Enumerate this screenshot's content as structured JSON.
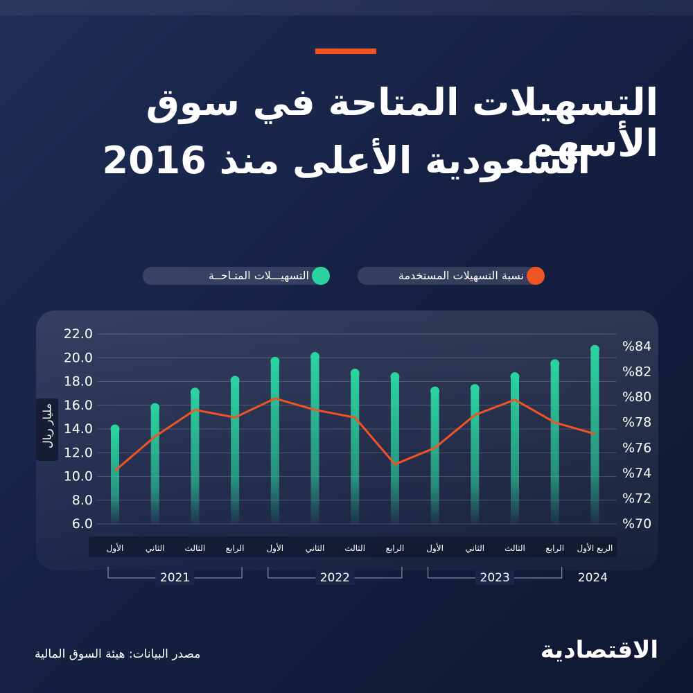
{
  "title": {
    "line1": "التسهيلات المتاحة في سوق الأسهم",
    "line2": "السعودية الأعلى منذ 2016"
  },
  "legend": {
    "available": "التسهيـــلات المتـاحــة",
    "used_ratio": "نسبة التسهيلات المستخدمة"
  },
  "colors": {
    "bar": "#2ad3a0",
    "line": "#f05423",
    "accent": "#f05423",
    "background": "#16213f"
  },
  "source": "مصدر البيانات: هيئة السوق المالية",
  "logo_text": "الاقتصادية",
  "chart_data": {
    "type": "bar",
    "ylabel": "مليار ريال",
    "ylim": [
      6.0,
      22.0
    ],
    "y2lim": [
      70,
      84
    ],
    "y_ticks": [
      "22.0",
      "20.0",
      "18.0",
      "16.0",
      "14.0",
      "12.0",
      "10.0",
      "8.0",
      "6.0"
    ],
    "y2_ticks": [
      "%84",
      "%82",
      "%80",
      "%78",
      "%76",
      "%74",
      "%72",
      "%70"
    ],
    "categories": [
      "الأول",
      "الثاني",
      "الثالث",
      "الرابع",
      "الأول",
      "الثاني",
      "الثالث",
      "الرابع",
      "الأول",
      "الثاني",
      "الثالث",
      "الرابع",
      "الربع الأول"
    ],
    "years": [
      "2021",
      "2022",
      "2023",
      "2024"
    ],
    "series": [
      {
        "name": "التسهيـــلات المتـاحــة",
        "type": "bar",
        "axis": "left",
        "values": [
          14.0,
          15.8,
          17.1,
          18.1,
          19.7,
          20.1,
          18.7,
          18.4,
          17.2,
          17.4,
          18.4,
          19.5,
          20.7
        ]
      },
      {
        "name": "نسبة التسهيلات المستخدمة",
        "type": "line",
        "axis": "right",
        "values": [
          74.2,
          76.9,
          79.0,
          78.4,
          79.9,
          79.0,
          78.4,
          74.7,
          76.0,
          78.6,
          79.8,
          78.0,
          77.1
        ]
      }
    ]
  }
}
